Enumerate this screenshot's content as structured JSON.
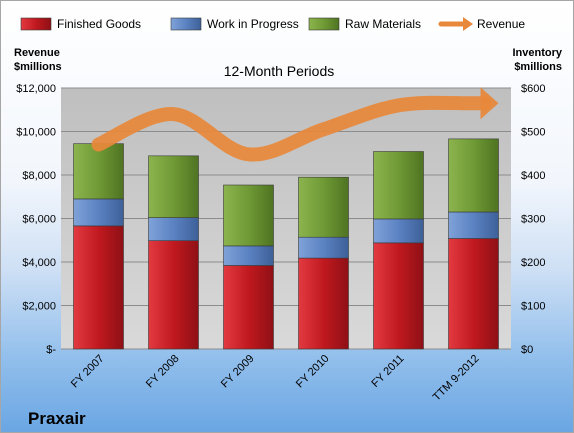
{
  "chart_data": {
    "type": "bar",
    "stacked": true,
    "subtitle": "12-Month Periods",
    "company": "Praxair",
    "categories": [
      "FY 2007",
      "FY 2008",
      "FY 2009",
      "FY 2010",
      "FY 2011",
      "TTM 9-2012"
    ],
    "series": [
      {
        "name": "Finished Goods",
        "axis": "right",
        "color": "#c0191f",
        "values": [
          283,
          249,
          192,
          209,
          244,
          254
        ]
      },
      {
        "name": "Work in Progress",
        "axis": "right",
        "color": "#5b82c2",
        "values": [
          62,
          53,
          45,
          48,
          55,
          61
        ]
      },
      {
        "name": "Raw Materials",
        "axis": "right",
        "color": "#6f9a35",
        "values": [
          127,
          142,
          140,
          138,
          155,
          168
        ]
      },
      {
        "name": "Revenue",
        "axis": "left",
        "type": "line",
        "color": "#e8883a",
        "values": [
          9400,
          10800,
          8950,
          10100,
          11200,
          11300
        ]
      }
    ],
    "y_left": {
      "title": [
        "Revenue",
        "$millions"
      ],
      "range": [
        0,
        12000
      ],
      "ticks": [
        0,
        2000,
        4000,
        6000,
        8000,
        10000,
        12000
      ],
      "tick_labels": [
        "$-",
        "$2,000",
        "$4,000",
        "$6,000",
        "$8,000",
        "$10,000",
        "$12,000"
      ]
    },
    "y_right": {
      "title": [
        "Inventory",
        "$millions"
      ],
      "range": [
        0,
        600
      ],
      "ticks": [
        0,
        100,
        200,
        300,
        400,
        500,
        600
      ],
      "tick_labels": [
        "$0",
        "$100",
        "$200",
        "$300",
        "$400",
        "$500",
        "$600"
      ]
    },
    "grid": true,
    "legend": "top"
  }
}
